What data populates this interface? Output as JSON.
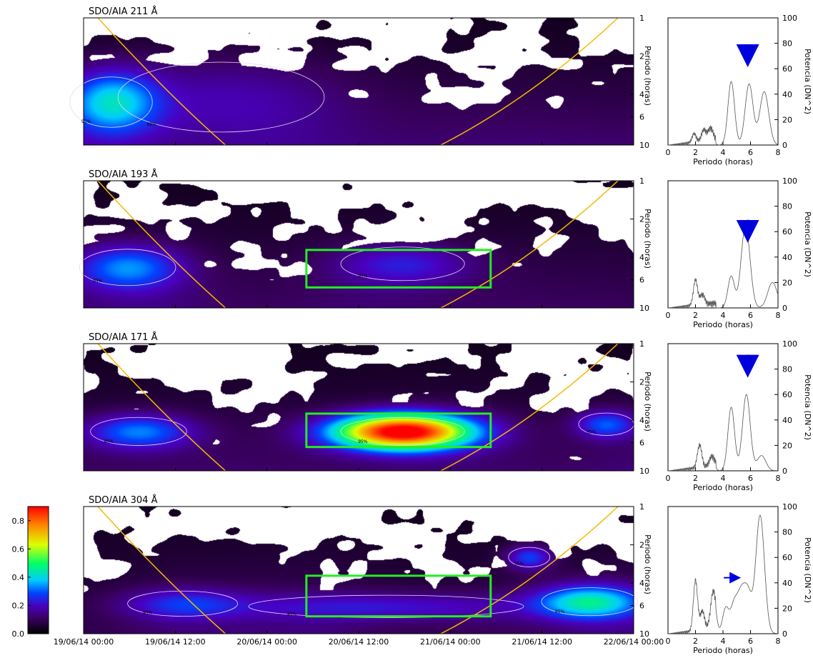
{
  "colors": {
    "cone_of_influence": "#f5b800",
    "significance_contour": "#e8d8f0",
    "roi_box": "#22ee22",
    "peak_arrow": "#0000dd",
    "spectrum_line": "#555555"
  },
  "colorbar": {
    "colormap": "black-purple-blue-cyan-green-yellow-red",
    "min": 0.0,
    "max": 0.9,
    "ticks": [
      0.0,
      0.2,
      0.4,
      0.6,
      0.8
    ],
    "tick_labels": [
      "0.0",
      "0.2",
      "0.4",
      "0.6",
      "0.8"
    ]
  },
  "time_axis": {
    "ticks": [
      "19/06/14 00:00",
      "19/06/14 12:00",
      "20/06/14 00:00",
      "20/06/14 12:00",
      "21/06/14 00:00",
      "21/06/14 12:00",
      "22/06/14 00:00"
    ]
  },
  "chart_data": [
    {
      "type": "heatmap",
      "title": "SDO/AIA 211 Å",
      "ylabel": "Periodo (horas)",
      "y_scale": "log",
      "ylim": [
        1,
        10
      ],
      "y_ticks": [
        1,
        2,
        4,
        6,
        10
      ],
      "y_tick_labels": [
        "1",
        "2",
        "4",
        "6",
        "10"
      ],
      "contour_label": "95%",
      "blobs": [
        {
          "t": 0.05,
          "period": 4.6,
          "power": 0.3,
          "t_width": 0.06,
          "p_width": 0.18
        },
        {
          "t": 0.25,
          "period": 4.2,
          "power": 0.1,
          "t_width": 0.15,
          "p_width": 0.25
        }
      ],
      "roi": null,
      "spectrum": {
        "type": "line",
        "xlabel": "Periodo (horas)",
        "ylabel": "Potencia (DN^2)",
        "xlim": [
          0,
          8
        ],
        "ylim": [
          0,
          100
        ],
        "x_ticks": [
          0,
          2,
          4,
          6,
          8
        ],
        "x_tick_labels": [
          "0",
          "2",
          "4",
          "6",
          "8"
        ],
        "y_ticks": [
          0,
          20,
          40,
          60,
          80,
          100
        ],
        "y_tick_labels": [
          "0",
          "20",
          "40",
          "60",
          "80",
          "100"
        ],
        "peaks": [
          [
            4.6,
            50
          ],
          [
            5.9,
            48
          ],
          [
            7.0,
            42
          ],
          [
            3.1,
            10
          ],
          [
            2.6,
            9
          ],
          [
            1.9,
            7
          ]
        ],
        "arrow": {
          "direction": "down",
          "x": 5.8,
          "y": 68
        }
      }
    },
    {
      "type": "heatmap",
      "title": "SDO/AIA 193 Å",
      "ylabel": "Periodo (horas)",
      "y_scale": "log",
      "ylim": [
        1,
        10
      ],
      "y_ticks": [
        1,
        2,
        4,
        6,
        10
      ],
      "y_tick_labels": [
        "1",
        "2",
        "4",
        "6",
        "10"
      ],
      "contour_label": "95%",
      "blobs": [
        {
          "t": 0.08,
          "period": 4.8,
          "power": 0.25,
          "t_width": 0.07,
          "p_width": 0.13
        },
        {
          "t": 0.58,
          "period": 4.5,
          "power": 0.15,
          "t_width": 0.09,
          "p_width": 0.12
        }
      ],
      "roi": {
        "t0": 0.405,
        "t1": 0.74,
        "p0": 3.5,
        "p1": 6.9
      },
      "spectrum": {
        "type": "line",
        "xlabel": "Periodo (horas)",
        "ylabel": "Potencia (DN^2)",
        "xlim": [
          0,
          8
        ],
        "ylim": [
          0,
          100
        ],
        "x_ticks": [
          0,
          2,
          4,
          6,
          8
        ],
        "x_tick_labels": [
          "0",
          "2",
          "4",
          "6",
          "8"
        ],
        "y_ticks": [
          0,
          20,
          40,
          60,
          80,
          100
        ],
        "y_tick_labels": [
          "0",
          "20",
          "40",
          "60",
          "80",
          "100"
        ],
        "peaks": [
          [
            5.5,
            38
          ],
          [
            5.8,
            36
          ],
          [
            4.6,
            25
          ],
          [
            7.6,
            20
          ],
          [
            2.0,
            20
          ],
          [
            2.5,
            8
          ]
        ],
        "arrow": {
          "direction": "down",
          "x": 5.8,
          "y": 58
        }
      }
    },
    {
      "type": "heatmap",
      "title": "SDO/AIA 171 Å",
      "ylabel": "Periodo (horas)",
      "y_scale": "log",
      "ylim": [
        1,
        10
      ],
      "y_ticks": [
        1,
        2,
        4,
        6,
        10
      ],
      "y_tick_labels": [
        "1",
        "2",
        "4",
        "6",
        "10"
      ],
      "contour_label": "95%",
      "blobs": [
        {
          "t": 0.58,
          "period": 4.9,
          "power": 0.88,
          "t_width": 0.09,
          "p_width": 0.1
        },
        {
          "t": 0.1,
          "period": 4.9,
          "power": 0.25,
          "t_width": 0.07,
          "p_width": 0.1
        },
        {
          "t": 0.95,
          "period": 4.3,
          "power": 0.22,
          "t_width": 0.04,
          "p_width": 0.08
        }
      ],
      "roi": {
        "t0": 0.405,
        "t1": 0.74,
        "p0": 3.55,
        "p1": 6.5
      },
      "spectrum": {
        "type": "line",
        "xlabel": "Periodo (horas)",
        "ylabel": "Potencia (DN^2)",
        "xlim": [
          0,
          8
        ],
        "ylim": [
          0,
          100
        ],
        "x_ticks": [
          0,
          2,
          4,
          6,
          8
        ],
        "x_tick_labels": [
          "0",
          "2",
          "4",
          "6",
          "8"
        ],
        "y_ticks": [
          0,
          20,
          40,
          60,
          80,
          100
        ],
        "y_tick_labels": [
          "0",
          "20",
          "40",
          "60",
          "80",
          "100"
        ],
        "peaks": [
          [
            5.7,
            60
          ],
          [
            4.6,
            50
          ],
          [
            2.3,
            18
          ],
          [
            6.8,
            12
          ],
          [
            3.2,
            8
          ]
        ],
        "arrow": {
          "direction": "down",
          "x": 5.8,
          "y": 80
        }
      }
    },
    {
      "type": "heatmap",
      "title": "SDO/AIA 304 Å",
      "ylabel": "Periodo (horas)",
      "y_scale": "log",
      "ylim": [
        1,
        10
      ],
      "y_ticks": [
        1,
        2,
        4,
        6,
        10
      ],
      "y_tick_labels": [
        "1",
        "2",
        "4",
        "6",
        "10"
      ],
      "contour_label": "95%",
      "blobs": [
        {
          "t": 0.92,
          "period": 5.6,
          "power": 0.35,
          "t_width": 0.07,
          "p_width": 0.1
        },
        {
          "t": 0.81,
          "period": 2.5,
          "power": 0.22,
          "t_width": 0.03,
          "p_width": 0.07
        },
        {
          "t": 0.55,
          "period": 6.1,
          "power": 0.14,
          "t_width": 0.2,
          "p_width": 0.08
        },
        {
          "t": 0.18,
          "period": 5.8,
          "power": 0.16,
          "t_width": 0.08,
          "p_width": 0.09
        }
      ],
      "roi": {
        "t0": 0.405,
        "t1": 0.74,
        "p0": 3.5,
        "p1": 7.3
      },
      "spectrum": {
        "type": "line",
        "xlabel": "Periodo (horas)",
        "ylabel": "Potencia (DN^2)",
        "xlim": [
          0,
          8
        ],
        "ylim": [
          0,
          100
        ],
        "x_ticks": [
          0,
          2,
          4,
          6,
          8
        ],
        "x_tick_labels": [
          "0",
          "2",
          "4",
          "6",
          "8"
        ],
        "y_ticks": [
          0,
          20,
          40,
          60,
          80,
          100
        ],
        "y_tick_labels": [
          "0",
          "20",
          "40",
          "60",
          "80",
          "100"
        ],
        "peaks": [
          [
            6.7,
            93
          ],
          [
            5.8,
            32
          ],
          [
            5.3,
            28
          ],
          [
            4.8,
            22
          ],
          [
            4.2,
            20
          ],
          [
            2.0,
            40
          ],
          [
            3.3,
            30
          ],
          [
            2.5,
            15
          ]
        ],
        "arrow": {
          "direction": "right",
          "x": 5.1,
          "y": 44
        }
      }
    }
  ]
}
